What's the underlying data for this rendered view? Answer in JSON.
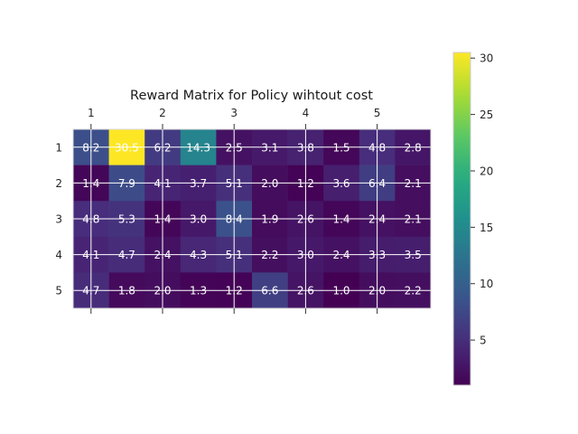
{
  "chart_data": {
    "type": "heatmap",
    "title": "Reward Matrix for Policy wihtout cost",
    "xlabel": "",
    "ylabel": "",
    "x_tick_labels": [
      "1",
      "2",
      "3",
      "4",
      "5"
    ],
    "y_tick_labels": [
      "1",
      "2",
      "3",
      "4",
      "5"
    ],
    "rows": 5,
    "cols": 10,
    "values": [
      [
        8.2,
        30.5,
        6.2,
        14.3,
        2.5,
        3.1,
        3.8,
        1.5,
        4.8,
        2.8
      ],
      [
        1.4,
        7.9,
        4.1,
        3.7,
        5.1,
        2.0,
        1.2,
        3.6,
        6.4,
        2.1
      ],
      [
        4.8,
        5.3,
        1.4,
        3.0,
        8.4,
        1.9,
        2.6,
        1.4,
        2.4,
        2.1
      ],
      [
        4.1,
        4.7,
        2.4,
        4.3,
        5.1,
        2.2,
        3.0,
        2.4,
        3.3,
        3.5
      ],
      [
        4.7,
        1.8,
        2.0,
        1.3,
        1.2,
        6.6,
        2.6,
        1.0,
        2.0,
        2.2
      ]
    ],
    "colormap": "viridis",
    "color_range": [
      1.0,
      30.5
    ],
    "colorbar_ticks": [
      5,
      10,
      15,
      20,
      25,
      30
    ],
    "grid": true
  }
}
